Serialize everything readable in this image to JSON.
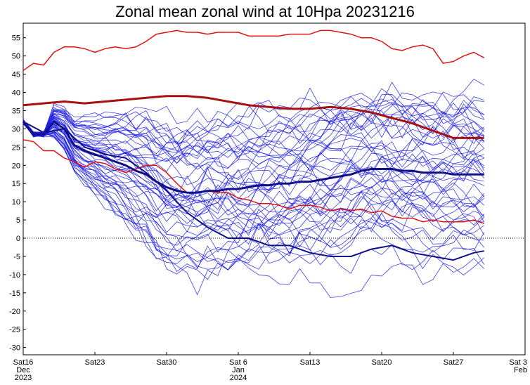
{
  "chart_data": {
    "type": "line",
    "title": "Zonal mean zonal wind at 10Hpa 20231216",
    "xlabel": "",
    "ylabel": "",
    "ylim": [
      -32,
      59
    ],
    "x_range_days_from_start": [
      0,
      49
    ],
    "yticks": [
      55,
      50,
      45,
      40,
      35,
      30,
      25,
      20,
      15,
      10,
      5,
      0,
      -5,
      -10,
      -15,
      -20,
      -25,
      -30
    ],
    "xticks": [
      {
        "day": 0,
        "lines": [
          "Sat16",
          "Dec",
          "2023"
        ]
      },
      {
        "day": 7,
        "lines": [
          "Sat23"
        ]
      },
      {
        "day": 14,
        "lines": [
          "Sat30"
        ]
      },
      {
        "day": 21,
        "lines": [
          "Sat 6",
          "Jan",
          "2024"
        ]
      },
      {
        "day": 28,
        "lines": [
          "Sat13"
        ]
      },
      {
        "day": 35,
        "lines": [
          "Sat20"
        ]
      },
      {
        "day": 42,
        "lines": [
          "Sat27"
        ]
      },
      {
        "day": 49,
        "lines": [
          "Sat 3",
          "Feb"
        ]
      }
    ],
    "zero_line": {
      "y": 0,
      "style": "dotted"
    },
    "colors": {
      "ensemble": "#1f1fe6",
      "ensemble_mean": "#10108a",
      "climatology": "#e01414",
      "climatology_mean": "#a81010"
    },
    "series": [
      {
        "role": "climatology-max",
        "x": [
          0,
          1,
          2,
          3,
          4,
          5,
          6,
          7,
          8,
          9,
          10,
          11,
          12,
          13,
          14,
          15,
          16,
          17,
          18,
          19,
          20,
          21,
          22,
          23,
          24,
          25,
          26,
          27,
          28,
          29,
          30,
          31,
          32,
          33,
          34,
          35,
          36,
          37,
          38,
          39,
          40,
          41,
          42,
          43,
          44,
          45
        ],
        "y": [
          46,
          48,
          47.5,
          51,
          52.5,
          52.5,
          52,
          51,
          52,
          52.5,
          52,
          52.5,
          54,
          56,
          56.5,
          57,
          56.5,
          56.5,
          56,
          56.5,
          56.5,
          56.5,
          55.5,
          55.5,
          55.5,
          55.5,
          56,
          56,
          56,
          57,
          57,
          56.5,
          56,
          55,
          55,
          54,
          52,
          51.5,
          52.5,
          53,
          52,
          48,
          48.5,
          50,
          51,
          49.5
        ]
      },
      {
        "role": "climatology-mean",
        "x": [
          0,
          2,
          4,
          6,
          8,
          10,
          12,
          14,
          16,
          18,
          20,
          22,
          24,
          26,
          28,
          30,
          32,
          34,
          36,
          38,
          40,
          42,
          44,
          45
        ],
        "y": [
          36.5,
          37,
          37.5,
          37,
          37.5,
          38,
          38.5,
          39,
          39,
          38.5,
          37.5,
          36.5,
          36,
          35.5,
          35.5,
          36,
          35.5,
          34.5,
          33,
          31.5,
          29.5,
          27.5,
          27.5,
          27.5
        ]
      },
      {
        "role": "climatology-min",
        "x": [
          0,
          1,
          2,
          3,
          4,
          5,
          6,
          7,
          8,
          9,
          10,
          11,
          12,
          13,
          14,
          15,
          16,
          17,
          18,
          19,
          20,
          21,
          22,
          23,
          24,
          25,
          26,
          27,
          28,
          29,
          30,
          31,
          32,
          33,
          34,
          35,
          36,
          37,
          38,
          39,
          40,
          41,
          42,
          43,
          44,
          45
        ],
        "y": [
          27,
          26.5,
          24,
          24,
          22,
          21,
          19.5,
          21,
          20.5,
          19,
          18,
          19,
          20,
          20,
          18,
          15,
          12.5,
          12.5,
          13,
          12.5,
          12.5,
          11,
          10.5,
          9.5,
          9.5,
          9,
          8,
          9,
          9,
          8.5,
          7.5,
          8,
          7.5,
          8,
          7,
          7.5,
          6,
          5.5,
          5.5,
          4.5,
          5,
          4.5,
          4.5,
          4.5,
          5,
          4
        ]
      },
      {
        "role": "ensemble-mean",
        "x": [
          0,
          1,
          2,
          3,
          4,
          5,
          6,
          7,
          8,
          9,
          10,
          11,
          12,
          13,
          14,
          15,
          16,
          17,
          18,
          19,
          20,
          21,
          22,
          23,
          24,
          25,
          26,
          27,
          28,
          29,
          30,
          31,
          32,
          33,
          34,
          35,
          36,
          37,
          38,
          39,
          40,
          41,
          42,
          43,
          44,
          45
        ],
        "y": [
          32,
          28.5,
          28.5,
          32,
          30,
          25.5,
          24,
          23,
          22,
          21,
          20,
          18.5,
          17.5,
          15.5,
          14,
          13,
          12.5,
          12.5,
          13,
          13,
          13.5,
          13.5,
          14,
          14.5,
          14.5,
          15,
          15,
          15.5,
          15.5,
          16,
          16.5,
          17,
          17.5,
          18.5,
          19,
          19,
          19,
          18.5,
          18.5,
          18,
          18,
          18,
          17.5,
          17.5,
          17.5,
          17.5
        ]
      },
      {
        "role": "ensemble-member-low",
        "x": [
          0,
          2,
          4,
          6,
          8,
          10,
          12,
          14,
          16,
          18,
          20,
          22,
          24,
          26,
          28,
          30,
          32,
          34,
          36,
          38,
          40,
          42,
          44,
          45
        ],
        "y": [
          32,
          29,
          30,
          25,
          23,
          22,
          18,
          13,
          7,
          3,
          0,
          0,
          -2,
          -2,
          -4,
          -5,
          -5,
          -3,
          -2,
          -4,
          -5,
          -6,
          -4,
          -3.5
        ]
      }
    ]
  }
}
